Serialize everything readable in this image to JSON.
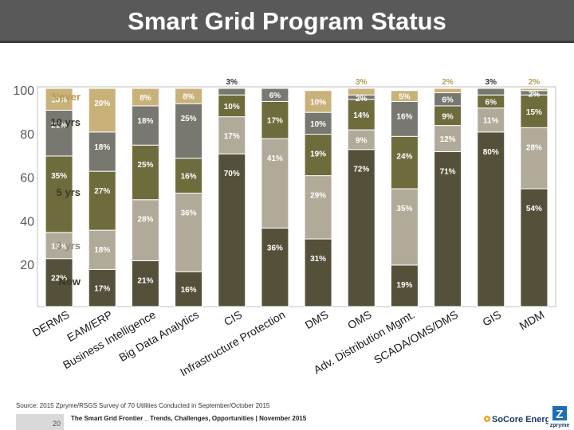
{
  "title": "Smart Grid Program Status",
  "colors": {
    "now": "#545039",
    "three_yrs": "#b1aa99",
    "five_yrs": "#6e6b3d",
    "ten_yrs": "#787870",
    "never": "#c8b27a",
    "legend_text_dark": "#3a3a2a",
    "legend_never_text": "#b59a5a",
    "legend_three_text": "#8d8a7c"
  },
  "chart_data": {
    "type": "bar",
    "stacked": true,
    "ylim": [
      0,
      100
    ],
    "yticks": [
      20,
      40,
      60,
      80,
      100
    ],
    "categories": [
      "DERMS",
      "EAM/ERP",
      "Business Intelligence",
      "Big Data Analytics",
      "CIS",
      "Infrastructure Protection",
      "DMS",
      "OMS",
      "Adv. Distribution Mgmt.",
      "SCADA/OMS/DMS",
      "GIS",
      "MDM"
    ],
    "series": [
      {
        "name": "Now",
        "key": "now",
        "values": [
          22,
          17,
          21,
          16,
          70,
          36,
          31,
          72,
          19,
          71,
          80,
          54
        ],
        "labels": [
          "22%",
          "17%",
          "21%",
          "16%",
          "70%",
          "36%",
          "31%",
          "72%",
          "19%",
          "71%",
          "80%",
          "54%"
        ]
      },
      {
        "name": "3 yrs",
        "key": "three_yrs",
        "values": [
          12,
          18,
          28,
          36,
          17,
          41,
          29,
          9,
          35,
          12,
          11,
          28
        ],
        "labels": [
          "12%",
          "18%",
          "28%",
          "36%",
          "17%",
          "41%",
          "29%",
          "9%",
          "35%",
          "12%",
          "11%",
          "28%"
        ]
      },
      {
        "name": "5 yrs",
        "key": "five_yrs",
        "values": [
          35,
          27,
          25,
          16,
          10,
          17,
          19,
          14,
          24,
          9,
          6,
          15
        ],
        "labels": [
          "35%",
          "27%",
          "25%",
          "16%",
          "10%",
          "17%",
          "19%",
          "14%",
          "24%",
          "9%",
          "6%",
          "15%"
        ]
      },
      {
        "name": "10 yrs",
        "key": "ten_yrs",
        "values": [
          21,
          18,
          18,
          25,
          3,
          6,
          10,
          2,
          16,
          6,
          3,
          2
        ],
        "labels": [
          "21%",
          "18%",
          "18%",
          "25%",
          "3%",
          "6%",
          "10%",
          "2%",
          "16%",
          "6%",
          "3%",
          "2%"
        ]
      },
      {
        "name": "Never",
        "key": "never",
        "values": [
          10,
          20,
          8,
          8,
          0,
          0,
          10,
          3,
          5,
          2,
          0,
          2
        ],
        "labels": [
          "10%",
          "20%",
          "8%",
          "8%",
          "",
          "",
          "10%",
          "3%",
          "5%",
          "2%",
          "",
          "2%"
        ]
      }
    ],
    "legend": [
      "Never",
      "10 yrs",
      "5 yrs",
      "3 yrs",
      "Now"
    ]
  },
  "footer": {
    "source": "Source: 2015 Zpryme/RSGS Survey of 70 Utilities Conducted in September/October 2015",
    "page_number": "20",
    "report_title": "The Smart Grid Frontier _ Trends, Challenges, Opportunities",
    "separator": " | ",
    "date": "November 2015",
    "brand": "SoCore Energy",
    "brand2": "zpryme"
  }
}
